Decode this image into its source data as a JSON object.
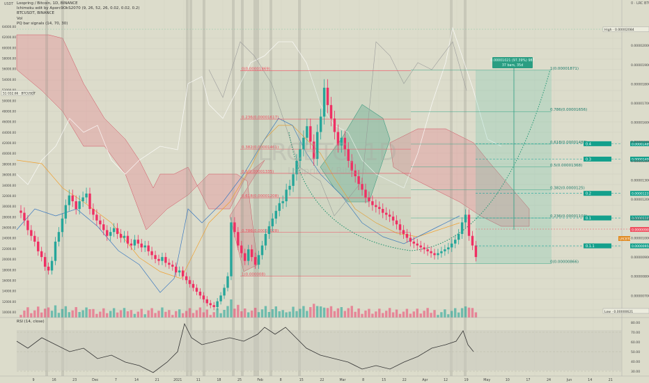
{
  "legend": {
    "symbol": "Loopring / Bitcoin, 1D, BINANCE",
    "ichimoku": "Ichimoku edit by Aporc9OkS2070 (9, 26, 52, 26, 0.02, 0.02, 0.2)",
    "compare": "BTCUSDT, BINANCE",
    "vol": "Vol",
    "pq": "PQ bar signals (14, 70, 30)"
  },
  "left_axis": {
    "top": "USDT",
    "badge": "51 032.66 · BTCUSDT"
  },
  "right_axis": {
    "top": "0 · LRC BTC",
    "high_badge": "High · 0.00002084",
    "low_badge": "Low · 0.00000621",
    "price_badge": "0.00000905",
    "lrcbtc_badge": "LRCBTC"
  },
  "watermark": "LRCBTC, 1D",
  "watermark2": "Loopring / Bitcoin",
  "position_box": {
    "line1": "0.00001021 (97.39%) 987",
    "line2": "37 bars, 35d"
  },
  "fib_left": [
    {
      "label": "0(0.00001869)",
      "price": 1.869e-05
    },
    {
      "label": "0.236(0.00001617)",
      "price": 1.617e-05
    },
    {
      "label": "0.382(0.00001461)",
      "price": 1.461e-05
    },
    {
      "label": "0.5(0.00001335)",
      "price": 1.335e-05
    },
    {
      "label": "0.618(0.00001208)",
      "price": 1.208e-05
    },
    {
      "label": "0.786(0.00001028)",
      "price": 1.028e-05
    },
    {
      "label": "1(0.000008)",
      "price": 8e-06
    }
  ],
  "fib_right": [
    {
      "label": "1(0.00001871)",
      "price": 1.871e-05
    },
    {
      "label": "0.786(0.00001656)",
      "price": 1.656e-05
    },
    {
      "label": "0.618(0.00001487)",
      "price": 1.487e-05
    },
    {
      "label": "0.5(0.00001368)",
      "price": 1.368e-05
    },
    {
      "label": "0.382(0.0000125)",
      "price": 1.25e-05
    },
    {
      "label": "0.236(0.00001103)",
      "price": 1.103e-05
    },
    {
      "label": "0(0.00000866)",
      "price": 8.66e-06
    }
  ],
  "targets": [
    {
      "label": "0.4",
      "value": "0.00001489",
      "price": 1.489e-05
    },
    {
      "label": "0.3",
      "value": "0.00001409",
      "price": 1.409e-05
    },
    {
      "label": "0.2",
      "value": "0.00001231",
      "price": 1.231e-05
    },
    {
      "label": "0.1",
      "value": "0.00001103",
      "price": 1.103e-05
    },
    {
      "label": "0.1.1",
      "value": "0.00000958",
      "price": 9.58e-06
    }
  ],
  "colors": {
    "bull": "#26a69a",
    "bear": "#ef2f63",
    "cloud_bear": "rgba(230,130,140,0.35)",
    "cloud_bull": "rgba(60,160,130,0.30)",
    "fib": "#ef4f60",
    "target": "#1aa39a",
    "btc": "#ffffff",
    "kijun": "#f0a030",
    "tenkan": "#3a78c0"
  },
  "x_ticks": [
    "9",
    "16",
    "23",
    "Dec",
    "7",
    "14",
    "21",
    "2021",
    "11",
    "18",
    "25",
    "Feb",
    "8",
    "15",
    "22",
    "Mar",
    "8",
    "15",
    "22",
    "Apr",
    "12",
    "19",
    "May",
    "10",
    "17",
    "24",
    "Jun",
    "14",
    "21"
  ],
  "rsi": {
    "label": "RSI (14, close)",
    "levels": [
      "80.00",
      "70.00",
      "60.00",
      "50.00",
      "40.00",
      "30.00"
    ]
  },
  "chart_data": {
    "type": "candlestick",
    "title": "Loopring / Bitcoin, 1D, BINANCE",
    "ylim": [
      6e-06,
      2.084e-05
    ],
    "y_ticks_right": [
      "0.00002000",
      "0.00001900",
      "0.00001800",
      "0.00001700",
      "0.00001600",
      "0.00001500",
      "0.00001400",
      "0.00001300",
      "0.00001200",
      "0.00001100",
      "0.00001000",
      "0.00000900",
      "0.00000800",
      "0.00000700"
    ],
    "y_ticks_left": [
      "64000.00",
      "62000.00",
      "60000.00",
      "58000.00",
      "56000.00",
      "54000.00",
      "52000.00",
      "50000.00",
      "48000.00",
      "46000.00",
      "44000.00",
      "42000.00",
      "40000.00",
      "38000.00",
      "36000.00",
      "34000.00",
      "32000.00",
      "30000.00",
      "28000.00",
      "26000.00",
      "24000.00",
      "22000.00",
      "20000.00",
      "18000.00",
      "16000.00",
      "14000.00",
      "12000.00",
      "10000.00"
    ],
    "close": [
      1.13e-05,
      1.09e-05,
      1.04e-05,
      1.01e-05,
      9.8e-06,
      9.3e-06,
      9e-06,
      8.5e-06,
      8.3e-06,
      8.8e-06,
      9.8e-06,
      1.03e-05,
      1.1e-05,
      1.17e-05,
      1.22e-05,
      1.19e-05,
      1.15e-05,
      1.19e-05,
      1.21e-05,
      1.23e-05,
      1.15e-05,
      1.12e-05,
      1.09e-05,
      1.07e-05,
      1.04e-05,
      1.01e-05,
      1.03e-05,
      1.05e-05,
      1.02e-05,
      1e-05,
      1.01e-05,
      9.7e-06,
      9.6e-06,
      9.9e-06,
      9.7e-06,
      9.5e-06,
      9.6e-06,
      9.3e-06,
      9.1e-06,
      8.9e-06,
      8.8e-06,
      9e-06,
      8.7e-06,
      8.6e-06,
      8.5e-06,
      8.2e-06,
      8.3e-06,
      8e-06,
      7.8e-06,
      7.6e-06,
      7.4e-06,
      7.2e-06,
      7e-06,
      6.8e-06,
      6.6e-06,
      6.5e-06,
      6.4e-06,
      6.7e-06,
      7e-06,
      7.4e-06,
      8e-06,
      1.08e-05,
      1.03e-05,
      9.6e-06,
      9.2e-06,
      8.8e-06,
      9.4e-06,
      9e-06,
      8.6e-06,
      9.1e-06,
      9.6e-06,
      1.02e-05,
      1.06e-05,
      1.1e-05,
      1.14e-05,
      1.18e-05,
      1.19e-05,
      1.25e-05,
      1.27e-05,
      1.33e-05,
      1.4e-05,
      1.46e-05,
      1.52e-05,
      1.58e-05,
      1.5e-05,
      1.41e-05,
      1.55e-05,
      1.63e-05,
      1.78e-05,
      1.69e-05,
      1.62e-05,
      1.55e-05,
      1.48e-05,
      1.52e-05,
      1.46e-05,
      1.4e-05,
      1.35e-05,
      1.32e-05,
      1.28e-05,
      1.25e-05,
      1.21e-05,
      1.19e-05,
      1.17e-05,
      1.16e-05,
      1.15e-05,
      1.13e-05,
      1.12e-05,
      1.11e-05,
      1.09e-05,
      1.07e-05,
      1.04e-05,
      1.02e-05,
      1e-05,
      9.8e-06,
      9.7e-06,
      9.6e-06,
      9.5e-06,
      9.4e-06,
      9.3e-06,
      9.2e-06,
      9.1e-06,
      9.2e-06,
      9.3e-06,
      9.4e-06,
      9.5e-06,
      9.7e-06,
      9.9e-06,
      1.02e-05,
      1.08e-05,
      1.12e-05,
      1.01e-05,
      9.6e-06,
      9e-06
    ]
  }
}
